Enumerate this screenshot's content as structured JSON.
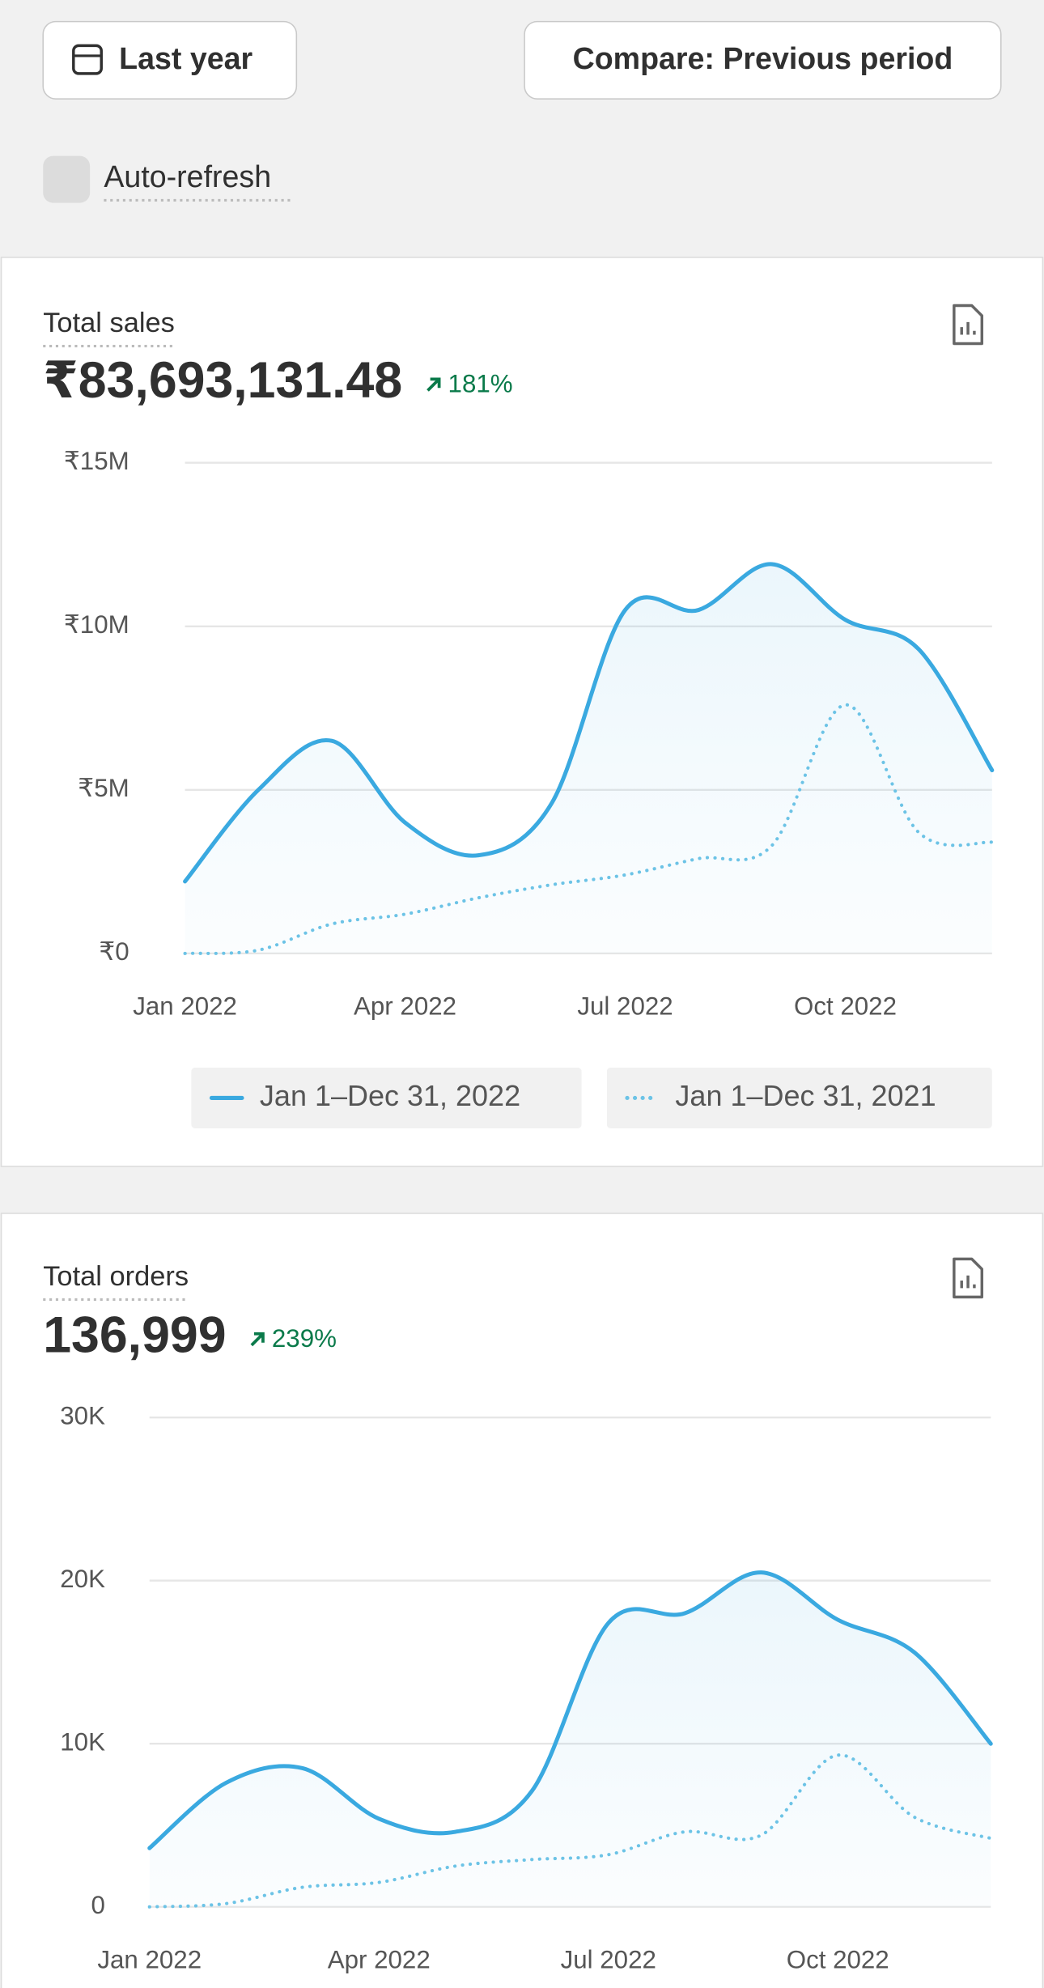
{
  "controls": {
    "date_button": "Last year",
    "compare_button": "Compare: Previous period",
    "auto_refresh": "Auto-refresh"
  },
  "chart_data": [
    {
      "type": "line",
      "title": "Total sales",
      "headline": "₹83,693,131.48",
      "change": "181%",
      "categories": [
        "Jan 2022",
        null,
        null,
        "Apr 2022",
        null,
        null,
        "Jul 2022",
        null,
        null,
        "Oct 2022",
        null,
        null
      ],
      "series": [
        {
          "name": "Jan 1–Dec 31, 2022",
          "color": "#3aa9e0",
          "style": "solid",
          "values": [
            2200000,
            5000000,
            6500000,
            4000000,
            3000000,
            4600000,
            10500000,
            10500000,
            11900000,
            10200000,
            9300000,
            5600000
          ]
        },
        {
          "name": "Jan 1–Dec 31, 2021",
          "color": "#6cc3e6",
          "style": "dotted",
          "values": [
            0,
            100000,
            900000,
            1200000,
            1700000,
            2100000,
            2400000,
            2900000,
            3300000,
            7600000,
            3700000,
            3400000
          ]
        }
      ],
      "ylim": [
        0,
        15000000
      ],
      "yticks": [
        {
          "value": 0,
          "label": "₹0"
        },
        {
          "value": 5000000,
          "label": "₹5M"
        },
        {
          "value": 10000000,
          "label": "₹10M"
        },
        {
          "value": 15000000,
          "label": "₹15M"
        }
      ],
      "grid": true
    },
    {
      "type": "line",
      "title": "Total orders",
      "headline": "136,999",
      "change": "239%",
      "categories": [
        "Jan 2022",
        null,
        null,
        "Apr 2022",
        null,
        null,
        "Jul 2022",
        null,
        null,
        "Oct 2022",
        null,
        null
      ],
      "series": [
        {
          "color": "#3aa9e0",
          "style": "solid",
          "values": [
            3600,
            7600,
            8500,
            5400,
            4600,
            7100,
            17400,
            18000,
            20500,
            17600,
            15600,
            10000
          ]
        },
        {
          "color": "#6cc3e6",
          "style": "dotted",
          "values": [
            0,
            200,
            1200,
            1500,
            2500,
            2900,
            3200,
            4600,
            4400,
            9300,
            5500,
            4200
          ]
        }
      ],
      "ylim": [
        0,
        30000
      ],
      "yticks": [
        0,
        {
          "value": 10000,
          "label": "10K"
        },
        {
          "value": 20000,
          "label": "20K"
        },
        {
          "value": 30000,
          "label": "30K"
        }
      ],
      "grid": true
    }
  ]
}
